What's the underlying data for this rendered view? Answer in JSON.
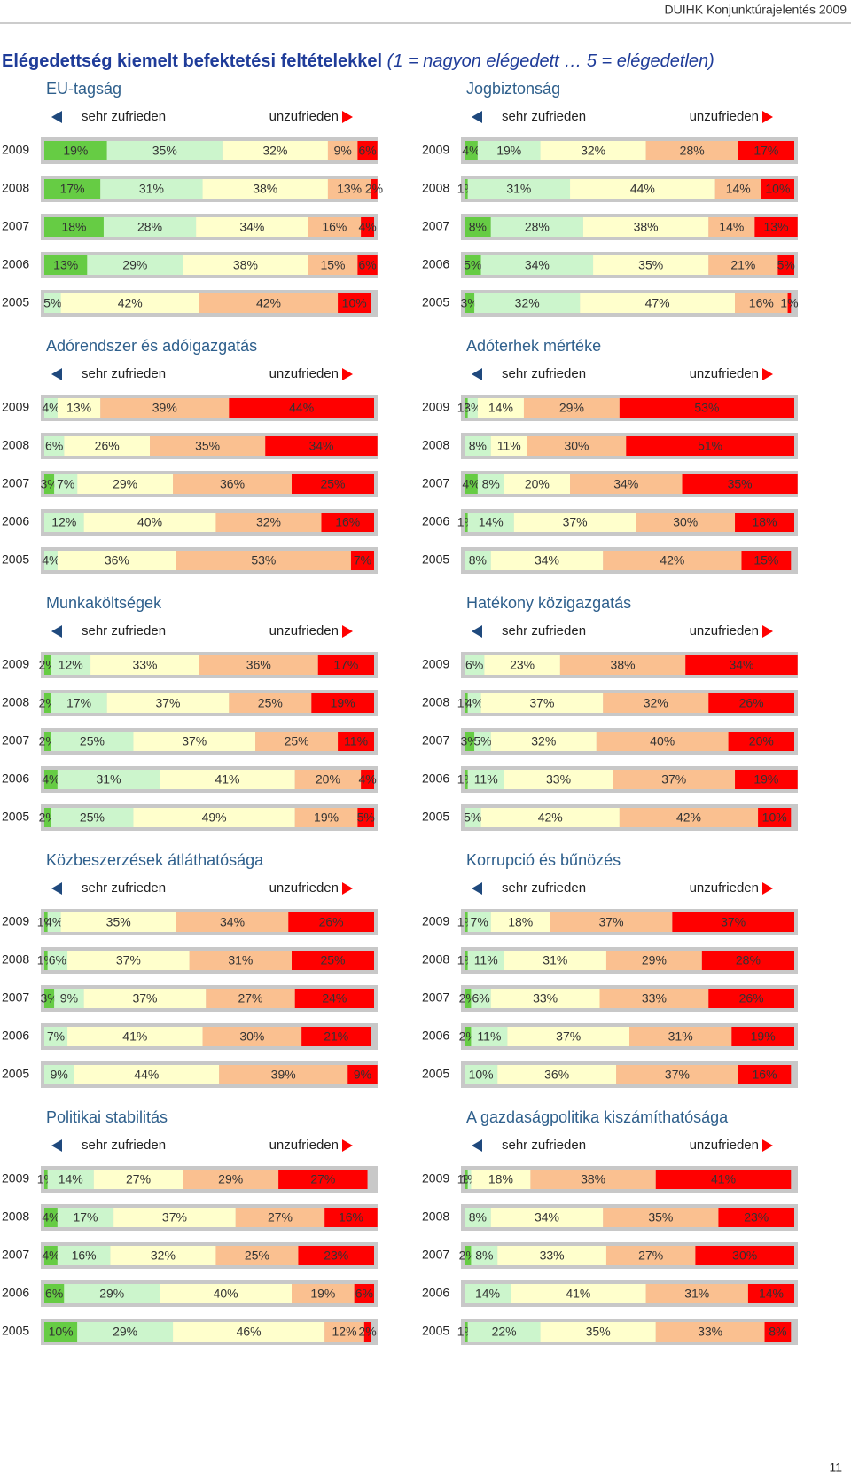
{
  "header": "DUIHK Konjunktúrajelentés 2009",
  "title_main": "Elégedettség kiemelt befektetési feltételekkel",
  "title_scale": "(1 = nagyon elégedett … 5 = elégedetlen)",
  "page_number": "11",
  "chart_data": [
    {
      "type": "bar",
      "orientation": "horizontal",
      "stacked": true,
      "title": "EU-tagság",
      "legend_left": "sehr zufrieden",
      "legend_right": "unzufrieden",
      "categories": [
        "2009",
        "2008",
        "2007",
        "2006",
        "2005"
      ],
      "xlim": [
        0,
        100
      ],
      "series": [
        {
          "color": "#66cc44",
          "values": [
            19,
            17,
            18,
            13,
            null
          ],
          "value_labels": [
            "19%",
            "17%",
            "18%",
            "13%",
            null
          ]
        },
        {
          "color": "#ccf5cc",
          "values": [
            35,
            31,
            28,
            29,
            5
          ],
          "value_labels": [
            "35%",
            "31%",
            "28%",
            "29%",
            "5%"
          ]
        },
        {
          "color": "#ffffcc",
          "values": [
            32,
            38,
            34,
            38,
            42
          ],
          "value_labels": [
            "32%",
            "38%",
            "34%",
            "38%",
            "42%"
          ]
        },
        {
          "color": "#fac090",
          "values": [
            9,
            13,
            16,
            15,
            42
          ],
          "value_labels": [
            "9%",
            "13%",
            "16%",
            "15%",
            "42%"
          ]
        },
        {
          "color": "#ff0000",
          "values": [
            6,
            2,
            4,
            6,
            10
          ],
          "value_labels": [
            "6%",
            "2%",
            "4%",
            "6%",
            "10%"
          ]
        }
      ]
    },
    {
      "type": "bar",
      "orientation": "horizontal",
      "stacked": true,
      "title": "Jogbiztonság",
      "legend_left": "sehr zufrieden",
      "legend_right": "unzufrieden",
      "categories": [
        "2009",
        "2008",
        "2007",
        "2006",
        "2005"
      ],
      "xlim": [
        0,
        100
      ],
      "series": [
        {
          "color": "#66cc44",
          "values": [
            4,
            1,
            8,
            5,
            3
          ],
          "value_labels": [
            "4%",
            "1%",
            "8%",
            "5%",
            "3%"
          ]
        },
        {
          "color": "#ccf5cc",
          "values": [
            19,
            31,
            28,
            34,
            32
          ],
          "value_labels": [
            "19%",
            "31%",
            "28%",
            "34%",
            "32%"
          ]
        },
        {
          "color": "#ffffcc",
          "values": [
            32,
            44,
            38,
            35,
            47
          ],
          "value_labels": [
            "32%",
            "44%",
            "38%",
            "35%",
            "47%"
          ]
        },
        {
          "color": "#fac090",
          "values": [
            28,
            14,
            14,
            21,
            16
          ],
          "value_labels": [
            "28%",
            "14%",
            "14%",
            "21%",
            "16%"
          ]
        },
        {
          "color": "#ff0000",
          "values": [
            17,
            10,
            13,
            5,
            1
          ],
          "value_labels": [
            "17%",
            "10%",
            "13%",
            "5%",
            "1%"
          ]
        }
      ]
    },
    {
      "type": "bar",
      "orientation": "horizontal",
      "stacked": true,
      "title": "Adórendszer és adóigazgatás",
      "legend_left": "sehr zufrieden",
      "legend_right": "unzufrieden",
      "categories": [
        "2009",
        "2008",
        "2007",
        "2006",
        "2005"
      ],
      "xlim": [
        0,
        100
      ],
      "series": [
        {
          "color": "#66cc44",
          "values": [
            null,
            null,
            3,
            null,
            null
          ],
          "value_labels": [
            null,
            null,
            "3%",
            null,
            null
          ]
        },
        {
          "color": "#ccf5cc",
          "values": [
            4,
            6,
            7,
            12,
            4
          ],
          "value_labels": [
            "4%",
            "6%",
            "7%",
            "12%",
            "4%"
          ]
        },
        {
          "color": "#ffffcc",
          "values": [
            13,
            26,
            29,
            40,
            36
          ],
          "value_labels": [
            "13%",
            "26%",
            "29%",
            "40%",
            "36%"
          ]
        },
        {
          "color": "#fac090",
          "values": [
            39,
            35,
            36,
            32,
            53
          ],
          "value_labels": [
            "39%",
            "35%",
            "36%",
            "32%",
            "53%"
          ]
        },
        {
          "color": "#ff0000",
          "values": [
            44,
            34,
            25,
            16,
            7
          ],
          "value_labels": [
            "44%",
            "34%",
            "25%",
            "16%",
            "7%"
          ]
        }
      ]
    },
    {
      "type": "bar",
      "orientation": "horizontal",
      "stacked": true,
      "title": "Adóterhek mértéke",
      "legend_left": "sehr zufrieden",
      "legend_right": "unzufrieden",
      "categories": [
        "2009",
        "2008",
        "2007",
        "2006",
        "2005"
      ],
      "xlim": [
        0,
        100
      ],
      "series": [
        {
          "color": "#66cc44",
          "values": [
            1,
            null,
            4,
            1,
            null
          ],
          "value_labels": [
            "1%",
            null,
            "4%",
            "1%",
            null
          ]
        },
        {
          "color": "#ccf5cc",
          "values": [
            3,
            8,
            8,
            14,
            8
          ],
          "value_labels": [
            "3%",
            "8%",
            "8%",
            "14%",
            "8%"
          ]
        },
        {
          "color": "#ffffcc",
          "values": [
            14,
            11,
            20,
            37,
            34
          ],
          "value_labels": [
            "14%",
            "11%",
            "20%",
            "37%",
            "34%"
          ]
        },
        {
          "color": "#fac090",
          "values": [
            29,
            30,
            34,
            30,
            42
          ],
          "value_labels": [
            "29%",
            "30%",
            "34%",
            "30%",
            "42%"
          ]
        },
        {
          "color": "#ff0000",
          "values": [
            53,
            51,
            35,
            18,
            15
          ],
          "value_labels": [
            "53%",
            "51%",
            "35%",
            "18%",
            "15%"
          ]
        }
      ]
    },
    {
      "type": "bar",
      "orientation": "horizontal",
      "stacked": true,
      "title": "Munkaköltségek",
      "legend_left": "sehr zufrieden",
      "legend_right": "unzufrieden",
      "categories": [
        "2009",
        "2008",
        "2007",
        "2006",
        "2005"
      ],
      "xlim": [
        0,
        100
      ],
      "series": [
        {
          "color": "#66cc44",
          "values": [
            2,
            2,
            2,
            4,
            2
          ],
          "value_labels": [
            "2%",
            "2%",
            "2%",
            "4%",
            "2%"
          ]
        },
        {
          "color": "#ccf5cc",
          "values": [
            12,
            17,
            25,
            31,
            25
          ],
          "value_labels": [
            "12%",
            "17%",
            "25%",
            "31%",
            "25%"
          ]
        },
        {
          "color": "#ffffcc",
          "values": [
            33,
            37,
            37,
            41,
            49
          ],
          "value_labels": [
            "33%",
            "37%",
            "37%",
            "41%",
            "49%"
          ]
        },
        {
          "color": "#fac090",
          "values": [
            36,
            25,
            25,
            20,
            19
          ],
          "value_labels": [
            "36%",
            "25%",
            "25%",
            "20%",
            "19%"
          ]
        },
        {
          "color": "#ff0000",
          "values": [
            17,
            19,
            11,
            4,
            5
          ],
          "value_labels": [
            "17%",
            "19%",
            "11%",
            "4%",
            "5%"
          ]
        }
      ]
    },
    {
      "type": "bar",
      "orientation": "horizontal",
      "stacked": true,
      "title": "Hatékony közigazgatás",
      "legend_left": "sehr zufrieden",
      "legend_right": "unzufrieden",
      "categories": [
        "2009",
        "2008",
        "2007",
        "2006",
        "2005"
      ],
      "xlim": [
        0,
        100
      ],
      "series": [
        {
          "color": "#66cc44",
          "values": [
            null,
            1,
            3,
            1,
            null
          ],
          "value_labels": [
            null,
            "1%",
            "3%",
            "1%",
            null
          ]
        },
        {
          "color": "#ccf5cc",
          "values": [
            6,
            4,
            5,
            11,
            5
          ],
          "value_labels": [
            "6%",
            "4%",
            "5%",
            "11%",
            "5%"
          ]
        },
        {
          "color": "#ffffcc",
          "values": [
            23,
            37,
            32,
            33,
            42
          ],
          "value_labels": [
            "23%",
            "37%",
            "32%",
            "33%",
            "42%"
          ]
        },
        {
          "color": "#fac090",
          "values": [
            38,
            32,
            40,
            37,
            42
          ],
          "value_labels": [
            "38%",
            "32%",
            "40%",
            "37%",
            "42%"
          ]
        },
        {
          "color": "#ff0000",
          "values": [
            34,
            26,
            20,
            19,
            10
          ],
          "value_labels": [
            "34%",
            "26%",
            "20%",
            "19%",
            "10%"
          ]
        }
      ]
    },
    {
      "type": "bar",
      "orientation": "horizontal",
      "stacked": true,
      "title": "Közbeszerzések átláthatósága",
      "legend_left": "sehr zufrieden",
      "legend_right": "unzufrieden",
      "categories": [
        "2009",
        "2008",
        "2007",
        "2006",
        "2005"
      ],
      "xlim": [
        0,
        100
      ],
      "series": [
        {
          "color": "#66cc44",
          "values": [
            1,
            1,
            3,
            null,
            null
          ],
          "value_labels": [
            "1%",
            "1%",
            "3%",
            null,
            null
          ]
        },
        {
          "color": "#ccf5cc",
          "values": [
            4,
            6,
            9,
            7,
            9
          ],
          "value_labels": [
            "4%",
            "6%",
            "9%",
            "7%",
            "9%"
          ]
        },
        {
          "color": "#ffffcc",
          "values": [
            35,
            37,
            37,
            41,
            44
          ],
          "value_labels": [
            "35%",
            "37%",
            "37%",
            "41%",
            "44%"
          ]
        },
        {
          "color": "#fac090",
          "values": [
            34,
            31,
            27,
            30,
            39
          ],
          "value_labels": [
            "34%",
            "31%",
            "27%",
            "30%",
            "39%"
          ]
        },
        {
          "color": "#ff0000",
          "values": [
            26,
            25,
            24,
            21,
            9
          ],
          "value_labels": [
            "26%",
            "25%",
            "24%",
            "21%",
            "9%"
          ]
        }
      ]
    },
    {
      "type": "bar",
      "orientation": "horizontal",
      "stacked": true,
      "title": "Korrupció és bűnözés",
      "legend_left": "sehr zufrieden",
      "legend_right": "unzufrieden",
      "categories": [
        "2009",
        "2008",
        "2007",
        "2006",
        "2005"
      ],
      "xlim": [
        0,
        100
      ],
      "series": [
        {
          "color": "#66cc44",
          "values": [
            1,
            1,
            2,
            2,
            null
          ],
          "value_labels": [
            "1%",
            "1%",
            "2%",
            "2%",
            null
          ]
        },
        {
          "color": "#ccf5cc",
          "values": [
            7,
            11,
            6,
            11,
            10
          ],
          "value_labels": [
            "7%",
            "11%",
            "6%",
            "11%",
            "10%"
          ]
        },
        {
          "color": "#ffffcc",
          "values": [
            18,
            31,
            33,
            37,
            36
          ],
          "value_labels": [
            "18%",
            "31%",
            "33%",
            "37%",
            "36%"
          ]
        },
        {
          "color": "#fac090",
          "values": [
            37,
            29,
            33,
            31,
            37
          ],
          "value_labels": [
            "37%",
            "29%",
            "33%",
            "31%",
            "37%"
          ]
        },
        {
          "color": "#ff0000",
          "values": [
            37,
            28,
            26,
            19,
            16
          ],
          "value_labels": [
            "37%",
            "28%",
            "26%",
            "19%",
            "16%"
          ]
        }
      ]
    },
    {
      "type": "bar",
      "orientation": "horizontal",
      "stacked": true,
      "title": "Politikai stabilitás",
      "legend_left": "sehr zufrieden",
      "legend_right": "unzufrieden",
      "categories": [
        "2009",
        "2008",
        "2007",
        "2006",
        "2005"
      ],
      "xlim": [
        0,
        100
      ],
      "series": [
        {
          "color": "#66cc44",
          "values": [
            1,
            4,
            4,
            6,
            10
          ],
          "value_labels": [
            "1%",
            "4%",
            "4%",
            "6%",
            "10%"
          ]
        },
        {
          "color": "#ccf5cc",
          "values": [
            14,
            17,
            16,
            29,
            29
          ],
          "value_labels": [
            "14%",
            "17%",
            "16%",
            "29%",
            "29%"
          ]
        },
        {
          "color": "#ffffcc",
          "values": [
            27,
            37,
            32,
            40,
            46
          ],
          "value_labels": [
            "27%",
            "37%",
            "32%",
            "40%",
            "46%"
          ]
        },
        {
          "color": "#fac090",
          "values": [
            29,
            27,
            25,
            19,
            12
          ],
          "value_labels": [
            "29%",
            "27%",
            "25%",
            "19%",
            "12%"
          ]
        },
        {
          "color": "#ff0000",
          "values": [
            27,
            16,
            23,
            6,
            2
          ],
          "value_labels": [
            "27%",
            "16%",
            "23%",
            "6%",
            "2%"
          ]
        }
      ]
    },
    {
      "type": "bar",
      "orientation": "horizontal",
      "stacked": true,
      "title": "A gazdaságpolitika kiszámíthatósága",
      "legend_left": "sehr zufrieden",
      "legend_right": "unzufrieden",
      "categories": [
        "2009",
        "2008",
        "2007",
        "2006",
        "2005"
      ],
      "xlim": [
        0,
        100
      ],
      "series": [
        {
          "color": "#66cc44",
          "values": [
            1,
            null,
            2,
            null,
            1
          ],
          "value_labels": [
            "1%",
            null,
            "2%",
            null,
            "1%"
          ]
        },
        {
          "color": "#ccf5cc",
          "values": [
            1,
            8,
            8,
            14,
            22
          ],
          "value_labels": [
            "1%",
            "8%",
            "8%",
            "14%",
            "22%"
          ]
        },
        {
          "color": "#ffffcc",
          "values": [
            18,
            34,
            33,
            41,
            35
          ],
          "value_labels": [
            "18%",
            "34%",
            "33%",
            "41%",
            "35%"
          ]
        },
        {
          "color": "#fac090",
          "values": [
            38,
            35,
            27,
            31,
            33
          ],
          "value_labels": [
            "38%",
            "35%",
            "27%",
            "31%",
            "33%"
          ]
        },
        {
          "color": "#ff0000",
          "values": [
            41,
            23,
            30,
            14,
            8
          ],
          "value_labels": [
            "41%",
            "23%",
            "30%",
            "14%",
            "8%"
          ]
        }
      ]
    }
  ]
}
